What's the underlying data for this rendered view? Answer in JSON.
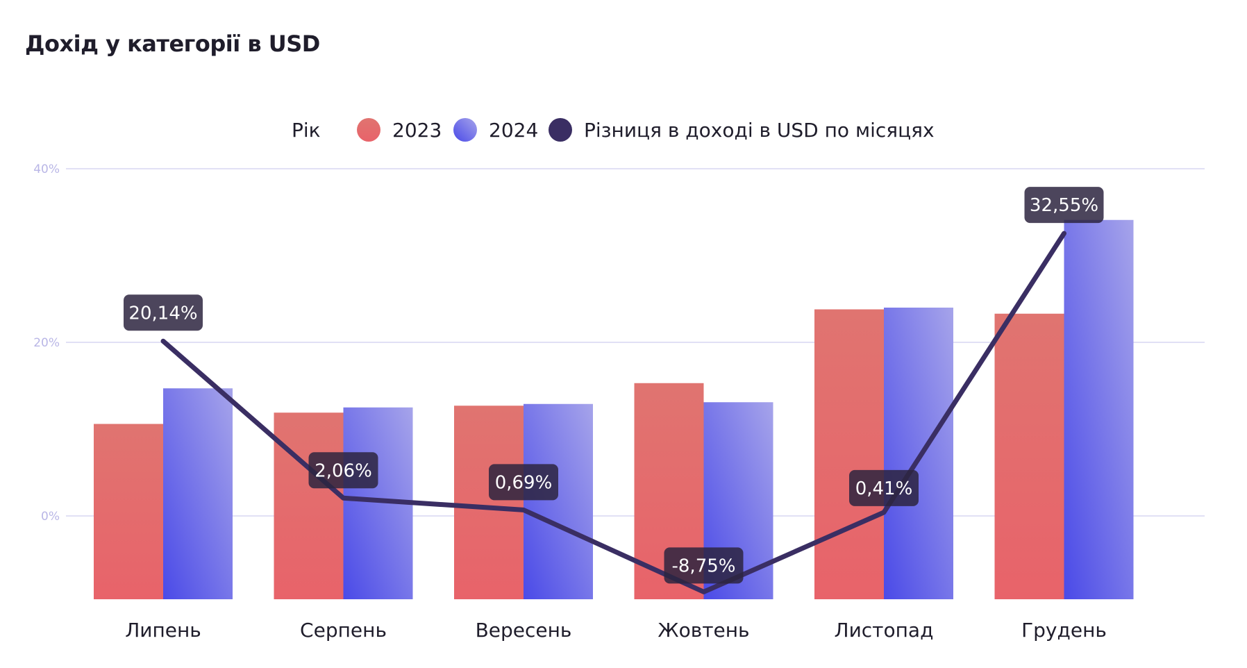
{
  "chart_data": {
    "type": "bar",
    "title": "Дохід у категорії в USD",
    "legend_title": "Рік",
    "categories": [
      "Липень",
      "Серпень",
      "Вересень",
      "Жовтень",
      "Листопад",
      "Грудень"
    ],
    "series": [
      {
        "name": "2023",
        "kind": "bar",
        "values": [
          10.6,
          11.9,
          12.7,
          15.3,
          23.8,
          23.3
        ]
      },
      {
        "name": "2024",
        "kind": "bar",
        "values": [
          14.7,
          12.5,
          12.9,
          13.1,
          24.0,
          34.1
        ]
      },
      {
        "name": "Різниця в доході в USD по місяцях",
        "kind": "line",
        "values": [
          20.14,
          2.06,
          0.69,
          -8.75,
          0.41,
          32.55
        ],
        "labels": [
          "20,14%",
          "2,06%",
          "0,69%",
          "-8,75%",
          "0,41%",
          "32,55%"
        ]
      }
    ],
    "yticks": [
      "40%",
      "20%",
      "0%"
    ],
    "ytick_values": [
      40,
      20,
      0
    ],
    "ylim": [
      -10,
      40
    ],
    "grid": true,
    "legend_position": "top-center",
    "colors": {
      "2023_top": "#e07470",
      "2023_bottom": "#e8636a",
      "2024_top": "#a6a4ea",
      "2024_bottom": "#4a4ae8",
      "line": "#3a2e63",
      "label_bg": "#2d2540",
      "grid": "#d7d5f2"
    }
  }
}
